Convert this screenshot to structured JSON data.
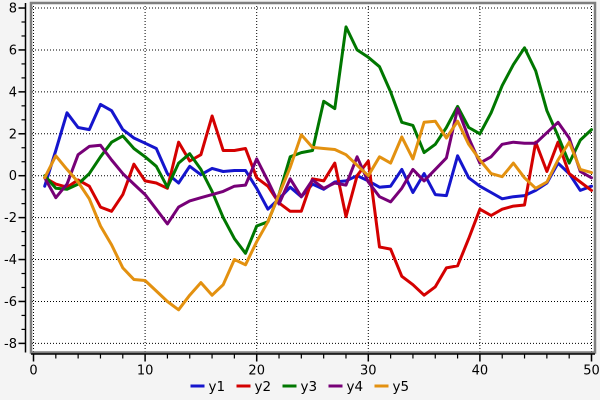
{
  "chart_data": {
    "type": "line",
    "title": "",
    "xlabel": "",
    "ylabel": "",
    "xlim": [
      0,
      50
    ],
    "ylim": [
      -8,
      8
    ],
    "grid": true,
    "grid_style": "dotted",
    "legend_position": "bottom-center",
    "x_ticks": [
      0,
      10,
      20,
      30,
      40,
      50
    ],
    "y_ticks": [
      8,
      6,
      4,
      2,
      0,
      -2,
      -4,
      -6,
      -8
    ],
    "x_tick_labels": [
      "0",
      "10",
      "20",
      "30",
      "40",
      "50"
    ],
    "y_tick_labels": [
      "8",
      "6",
      "4",
      "2",
      "0",
      "-2",
      "-4",
      "-6",
      "-8"
    ],
    "x_minor_tick_step": 2,
    "y_minor_ticks_per_major": 3,
    "x": [
      1,
      2,
      3,
      4,
      5,
      6,
      7,
      8,
      9,
      10,
      11,
      12,
      13,
      14,
      15,
      16,
      17,
      18,
      19,
      20,
      21,
      22,
      23,
      24,
      25,
      26,
      27,
      28,
      29,
      30,
      31,
      32,
      33,
      34,
      35,
      36,
      37,
      38,
      39,
      40,
      41,
      42,
      43,
      44,
      45,
      46,
      47,
      48,
      49,
      50
    ],
    "series": [
      {
        "name": "y1",
        "color": "#1515cd",
        "values": [
          -0.5,
          1.2,
          3.0,
          2.3,
          2.2,
          3.4,
          3.1,
          2.2,
          1.8,
          1.55,
          1.3,
          0.1,
          -0.35,
          0.45,
          0.05,
          0.35,
          0.2,
          0.25,
          0.25,
          -0.6,
          -1.6,
          -1.1,
          -0.55,
          -1.0,
          -0.4,
          -0.65,
          -0.3,
          -0.25,
          0.0,
          -0.25,
          -0.55,
          -0.5,
          0.3,
          -0.8,
          0.1,
          -0.9,
          -0.95,
          0.95,
          -0.1,
          -0.5,
          -0.8,
          -1.1,
          -1.0,
          -0.95,
          -0.7,
          -0.35,
          0.6,
          0.1,
          -0.7,
          -0.5
        ]
      },
      {
        "name": "y2",
        "color": "#d40000",
        "values": [
          -0.1,
          -0.4,
          -0.55,
          -0.2,
          -0.5,
          -1.5,
          -1.7,
          -0.9,
          0.55,
          -0.25,
          -0.35,
          -0.6,
          1.6,
          0.7,
          1.0,
          2.85,
          1.2,
          1.2,
          1.3,
          -0.1,
          -0.5,
          -1.3,
          -1.7,
          -1.7,
          -0.15,
          -0.25,
          0.6,
          -1.95,
          0.0,
          0.7,
          -3.4,
          -3.5,
          -4.8,
          -5.2,
          -5.7,
          -5.3,
          -4.4,
          -4.3,
          -3.0,
          -1.6,
          -1.9,
          -1.6,
          -1.45,
          -1.4,
          1.6,
          0.2,
          1.6,
          0.1,
          -0.3,
          -0.7
        ]
      },
      {
        "name": "y3",
        "color": "#007700",
        "values": [
          0.0,
          -0.6,
          -0.65,
          -0.4,
          0.1,
          0.9,
          1.6,
          1.9,
          1.3,
          0.9,
          0.45,
          -0.55,
          0.6,
          1.05,
          0.3,
          -0.75,
          -2.0,
          -3.0,
          -3.7,
          -2.4,
          -2.2,
          -0.9,
          0.9,
          1.1,
          1.2,
          3.55,
          3.2,
          7.1,
          6.0,
          5.65,
          5.2,
          4.0,
          2.55,
          2.4,
          1.1,
          1.5,
          2.3,
          3.3,
          2.3,
          2.0,
          3.0,
          4.3,
          5.3,
          6.1,
          5.0,
          3.1,
          1.9,
          0.6,
          1.7,
          2.2
        ]
      },
      {
        "name": "y4",
        "color": "#770077",
        "values": [
          -0.1,
          -1.05,
          -0.4,
          1.0,
          1.4,
          1.45,
          0.75,
          0.1,
          -0.4,
          -0.9,
          -1.6,
          -2.3,
          -1.5,
          -1.2,
          -1.05,
          -0.9,
          -0.75,
          -0.5,
          -0.45,
          0.8,
          -0.25,
          -1.35,
          -0.15,
          -1.0,
          -0.2,
          -0.6,
          -0.35,
          -0.45,
          0.9,
          -0.3,
          -1.0,
          -1.25,
          -0.6,
          0.3,
          -0.25,
          0.3,
          0.85,
          3.2,
          1.8,
          0.6,
          0.9,
          1.5,
          1.6,
          1.55,
          1.55,
          2.05,
          2.55,
          1.8,
          0.2,
          -0.1
        ]
      },
      {
        "name": "y5",
        "color": "#e39110",
        "values": [
          -0.1,
          0.95,
          0.3,
          -0.3,
          -1.1,
          -2.4,
          -3.3,
          -4.4,
          -4.95,
          -5.0,
          -5.5,
          -6.0,
          -6.4,
          -5.7,
          -5.1,
          -5.7,
          -5.2,
          -4.0,
          -4.25,
          -3.15,
          -2.2,
          -0.9,
          0.4,
          1.95,
          1.35,
          1.3,
          1.25,
          1.0,
          0.5,
          0.0,
          0.9,
          0.6,
          1.85,
          0.8,
          2.55,
          2.6,
          1.8,
          2.6,
          1.5,
          0.75,
          0.1,
          -0.05,
          0.6,
          -0.1,
          -0.6,
          -0.3,
          0.75,
          1.6,
          0.3,
          0.15
        ]
      }
    ]
  },
  "legend": {
    "entries": [
      {
        "label": "y1",
        "color": "#1515cd"
      },
      {
        "label": "y2",
        "color": "#d40000"
      },
      {
        "label": "y3",
        "color": "#007700"
      },
      {
        "label": "y4",
        "color": "#770077"
      },
      {
        "label": "y5",
        "color": "#e39110"
      }
    ]
  },
  "colors": {
    "page_background": "#f4f4f4",
    "plot_background": "#ffffff",
    "plot_border": "#7f7f7f",
    "axis": "#000000",
    "grid": "#000000",
    "tick_label": "#000000"
  }
}
